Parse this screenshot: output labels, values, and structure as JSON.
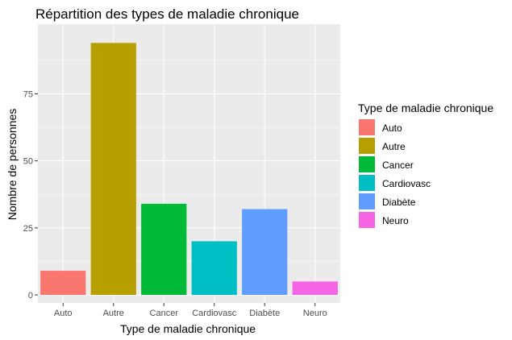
{
  "chart_data": {
    "type": "bar",
    "title": "Répartition des types de maladie chronique",
    "xlabel": "Type de maladie chronique",
    "ylabel": "Nombre de personnes",
    "categories": [
      "Auto",
      "Autre",
      "Cancer",
      "Cardiovasc",
      "Diabète",
      "Neuro"
    ],
    "values": [
      9,
      94,
      34,
      20,
      32,
      5
    ],
    "colors": [
      "#F8766D",
      "#B79F00",
      "#00BA38",
      "#00BFC4",
      "#619CFF",
      "#F564E3"
    ],
    "ylim": [
      -3,
      101
    ],
    "yticks": [
      0,
      25,
      50,
      75
    ],
    "grid": true,
    "panel_background": "#EBEBEB",
    "legend": {
      "title": "Type de maladie chronique",
      "position": "right",
      "entries": [
        "Auto",
        "Autre",
        "Cancer",
        "Cardiovasc",
        "Diabète",
        "Neuro"
      ]
    }
  }
}
